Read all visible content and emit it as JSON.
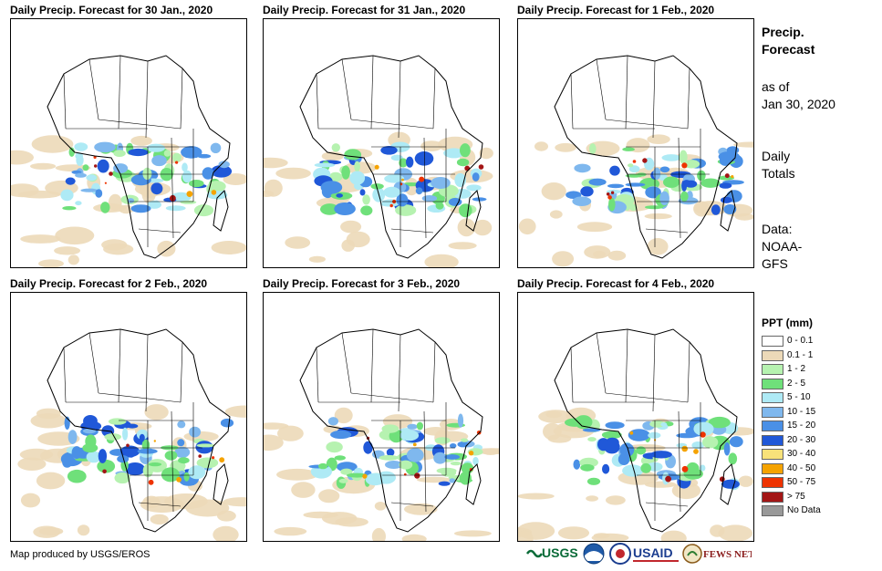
{
  "panels": [
    {
      "title": "Daily Precip. Forecast for 30 Jan., 2020"
    },
    {
      "title": "Daily Precip. Forecast for 31 Jan., 2020"
    },
    {
      "title": "Daily Precip. Forecast for 1 Feb., 2020"
    },
    {
      "title": "Daily Precip. Forecast for 2 Feb., 2020"
    },
    {
      "title": "Daily Precip. Forecast for 3 Feb., 2020"
    },
    {
      "title": "Daily Precip. Forecast for 4 Feb., 2020"
    }
  ],
  "side": {
    "title_line1": "Precip.",
    "title_line2": "Forecast",
    "asof_line1": "as of",
    "asof_line2": "Jan 30, 2020",
    "totals_line1": "Daily",
    "totals_line2": "Totals",
    "data_line1": "Data:",
    "data_line2": "NOAA-",
    "data_line3": "GFS"
  },
  "legend": {
    "title": "PPT (mm)",
    "items": [
      {
        "label": "0 - 0.1",
        "color": "#ffffff"
      },
      {
        "label": "0.1 - 1",
        "color": "#ecd9b8"
      },
      {
        "label": "1 - 2",
        "color": "#b6f2b0"
      },
      {
        "label": "2 - 5",
        "color": "#6fe07a"
      },
      {
        "label": "5 - 10",
        "color": "#aeeaf5"
      },
      {
        "label": "10 - 15",
        "color": "#7fb8ee"
      },
      {
        "label": "15 - 20",
        "color": "#4a90e6"
      },
      {
        "label": "20 - 30",
        "color": "#2058d8"
      },
      {
        "label": "30 - 40",
        "color": "#f8e27a"
      },
      {
        "label": "40 - 50",
        "color": "#f5a300"
      },
      {
        "label": "50 - 75",
        "color": "#ee3300"
      },
      {
        "label": "> 75",
        "color": "#a31515"
      },
      {
        "label": "No Data",
        "color": "#999999"
      }
    ]
  },
  "footer": {
    "text": "Map produced by USGS/EROS"
  },
  "logos": {
    "usgs": "USGS",
    "usaid": "USAID",
    "fewsnet": "FEWS NET"
  }
}
